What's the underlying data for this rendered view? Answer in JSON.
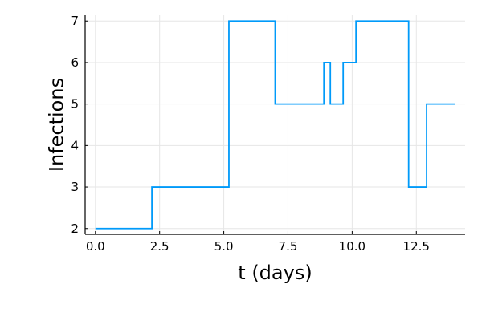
{
  "chart_data": {
    "type": "line",
    "step": "post",
    "xlabel": "t (days)",
    "ylabel": "Infections",
    "xlim": [
      -0.4,
      14.4
    ],
    "ylim": [
      1.86,
      7.14
    ],
    "xticks": [
      0.0,
      2.5,
      5.0,
      7.5,
      10.0,
      12.5
    ],
    "xtick_labels": [
      "0.0",
      "2.5",
      "5.0",
      "7.5",
      "10.0",
      "12.5"
    ],
    "yticks": [
      2,
      3,
      4,
      5,
      6,
      7
    ],
    "ytick_labels": [
      "2",
      "3",
      "4",
      "5",
      "6",
      "7"
    ],
    "grid": true,
    "legend": false,
    "series": [
      {
        "color": "#009af9",
        "x": [
          0.0,
          2.2,
          5.2,
          7.0,
          8.9,
          9.15,
          9.65,
          10.15,
          12.2,
          12.9,
          14.0
        ],
        "y": [
          2,
          3,
          7,
          5,
          6,
          5,
          6,
          7,
          3,
          5,
          5
        ]
      }
    ]
  }
}
